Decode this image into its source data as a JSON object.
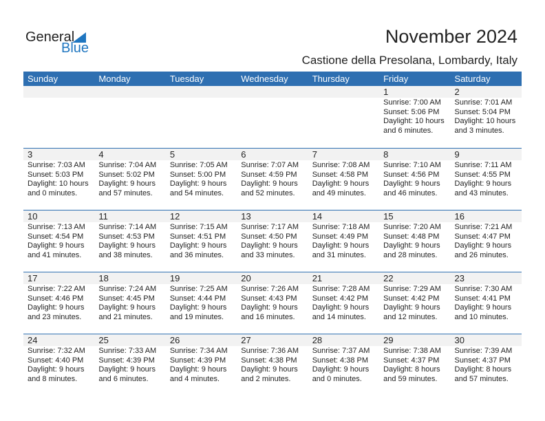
{
  "logo": {
    "text1": "General",
    "text2": "Blue"
  },
  "title": "November 2024",
  "subtitle": "Castione della Presolana, Lombardy, Italy",
  "weekdays": [
    "Sunday",
    "Monday",
    "Tuesday",
    "Wednesday",
    "Thursday",
    "Friday",
    "Saturday"
  ],
  "weeks": [
    [
      null,
      null,
      null,
      null,
      null,
      {
        "day": "1",
        "sunrise": "Sunrise: 7:00 AM",
        "sunset": "Sunset: 5:06 PM",
        "daylight": "Daylight: 10 hours",
        "minutes": "and 6 minutes."
      },
      {
        "day": "2",
        "sunrise": "Sunrise: 7:01 AM",
        "sunset": "Sunset: 5:04 PM",
        "daylight": "Daylight: 10 hours",
        "minutes": "and 3 minutes."
      }
    ],
    [
      {
        "day": "3",
        "sunrise": "Sunrise: 7:03 AM",
        "sunset": "Sunset: 5:03 PM",
        "daylight": "Daylight: 10 hours",
        "minutes": "and 0 minutes."
      },
      {
        "day": "4",
        "sunrise": "Sunrise: 7:04 AM",
        "sunset": "Sunset: 5:02 PM",
        "daylight": "Daylight: 9 hours",
        "minutes": "and 57 minutes."
      },
      {
        "day": "5",
        "sunrise": "Sunrise: 7:05 AM",
        "sunset": "Sunset: 5:00 PM",
        "daylight": "Daylight: 9 hours",
        "minutes": "and 54 minutes."
      },
      {
        "day": "6",
        "sunrise": "Sunrise: 7:07 AM",
        "sunset": "Sunset: 4:59 PM",
        "daylight": "Daylight: 9 hours",
        "minutes": "and 52 minutes."
      },
      {
        "day": "7",
        "sunrise": "Sunrise: 7:08 AM",
        "sunset": "Sunset: 4:58 PM",
        "daylight": "Daylight: 9 hours",
        "minutes": "and 49 minutes."
      },
      {
        "day": "8",
        "sunrise": "Sunrise: 7:10 AM",
        "sunset": "Sunset: 4:56 PM",
        "daylight": "Daylight: 9 hours",
        "minutes": "and 46 minutes."
      },
      {
        "day": "9",
        "sunrise": "Sunrise: 7:11 AM",
        "sunset": "Sunset: 4:55 PM",
        "daylight": "Daylight: 9 hours",
        "minutes": "and 43 minutes."
      }
    ],
    [
      {
        "day": "10",
        "sunrise": "Sunrise: 7:13 AM",
        "sunset": "Sunset: 4:54 PM",
        "daylight": "Daylight: 9 hours",
        "minutes": "and 41 minutes."
      },
      {
        "day": "11",
        "sunrise": "Sunrise: 7:14 AM",
        "sunset": "Sunset: 4:53 PM",
        "daylight": "Daylight: 9 hours",
        "minutes": "and 38 minutes."
      },
      {
        "day": "12",
        "sunrise": "Sunrise: 7:15 AM",
        "sunset": "Sunset: 4:51 PM",
        "daylight": "Daylight: 9 hours",
        "minutes": "and 36 minutes."
      },
      {
        "day": "13",
        "sunrise": "Sunrise: 7:17 AM",
        "sunset": "Sunset: 4:50 PM",
        "daylight": "Daylight: 9 hours",
        "minutes": "and 33 minutes."
      },
      {
        "day": "14",
        "sunrise": "Sunrise: 7:18 AM",
        "sunset": "Sunset: 4:49 PM",
        "daylight": "Daylight: 9 hours",
        "minutes": "and 31 minutes."
      },
      {
        "day": "15",
        "sunrise": "Sunrise: 7:20 AM",
        "sunset": "Sunset: 4:48 PM",
        "daylight": "Daylight: 9 hours",
        "minutes": "and 28 minutes."
      },
      {
        "day": "16",
        "sunrise": "Sunrise: 7:21 AM",
        "sunset": "Sunset: 4:47 PM",
        "daylight": "Daylight: 9 hours",
        "minutes": "and 26 minutes."
      }
    ],
    [
      {
        "day": "17",
        "sunrise": "Sunrise: 7:22 AM",
        "sunset": "Sunset: 4:46 PM",
        "daylight": "Daylight: 9 hours",
        "minutes": "and 23 minutes."
      },
      {
        "day": "18",
        "sunrise": "Sunrise: 7:24 AM",
        "sunset": "Sunset: 4:45 PM",
        "daylight": "Daylight: 9 hours",
        "minutes": "and 21 minutes."
      },
      {
        "day": "19",
        "sunrise": "Sunrise: 7:25 AM",
        "sunset": "Sunset: 4:44 PM",
        "daylight": "Daylight: 9 hours",
        "minutes": "and 19 minutes."
      },
      {
        "day": "20",
        "sunrise": "Sunrise: 7:26 AM",
        "sunset": "Sunset: 4:43 PM",
        "daylight": "Daylight: 9 hours",
        "minutes": "and 16 minutes."
      },
      {
        "day": "21",
        "sunrise": "Sunrise: 7:28 AM",
        "sunset": "Sunset: 4:42 PM",
        "daylight": "Daylight: 9 hours",
        "minutes": "and 14 minutes."
      },
      {
        "day": "22",
        "sunrise": "Sunrise: 7:29 AM",
        "sunset": "Sunset: 4:42 PM",
        "daylight": "Daylight: 9 hours",
        "minutes": "and 12 minutes."
      },
      {
        "day": "23",
        "sunrise": "Sunrise: 7:30 AM",
        "sunset": "Sunset: 4:41 PM",
        "daylight": "Daylight: 9 hours",
        "minutes": "and 10 minutes."
      }
    ],
    [
      {
        "day": "24",
        "sunrise": "Sunrise: 7:32 AM",
        "sunset": "Sunset: 4:40 PM",
        "daylight": "Daylight: 9 hours",
        "minutes": "and 8 minutes."
      },
      {
        "day": "25",
        "sunrise": "Sunrise: 7:33 AM",
        "sunset": "Sunset: 4:39 PM",
        "daylight": "Daylight: 9 hours",
        "minutes": "and 6 minutes."
      },
      {
        "day": "26",
        "sunrise": "Sunrise: 7:34 AM",
        "sunset": "Sunset: 4:39 PM",
        "daylight": "Daylight: 9 hours",
        "minutes": "and 4 minutes."
      },
      {
        "day": "27",
        "sunrise": "Sunrise: 7:36 AM",
        "sunset": "Sunset: 4:38 PM",
        "daylight": "Daylight: 9 hours",
        "minutes": "and 2 minutes."
      },
      {
        "day": "28",
        "sunrise": "Sunrise: 7:37 AM",
        "sunset": "Sunset: 4:38 PM",
        "daylight": "Daylight: 9 hours",
        "minutes": "and 0 minutes."
      },
      {
        "day": "29",
        "sunrise": "Sunrise: 7:38 AM",
        "sunset": "Sunset: 4:37 PM",
        "daylight": "Daylight: 8 hours",
        "minutes": "and 59 minutes."
      },
      {
        "day": "30",
        "sunrise": "Sunrise: 7:39 AM",
        "sunset": "Sunset: 4:37 PM",
        "daylight": "Daylight: 8 hours",
        "minutes": "and 57 minutes."
      }
    ]
  ]
}
